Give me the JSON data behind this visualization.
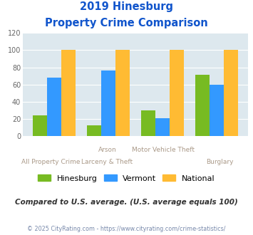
{
  "title_line1": "2019 Hinesburg",
  "title_line2": "Property Crime Comparison",
  "x_labels_top": [
    "",
    "Arson",
    "Motor Vehicle Theft",
    ""
  ],
  "x_labels_bottom": [
    "All Property Crime",
    "Larceny & Theft",
    "",
    "Burglary"
  ],
  "hinesburg": [
    24,
    13,
    30,
    71
  ],
  "vermont": [
    68,
    76,
    21,
    60
  ],
  "national": [
    100,
    100,
    100,
    100
  ],
  "colors": {
    "hinesburg": "#77bb22",
    "vermont": "#3399ff",
    "national": "#ffbb33"
  },
  "ylim": [
    0,
    120
  ],
  "yticks": [
    0,
    20,
    40,
    60,
    80,
    100,
    120
  ],
  "plot_bg": "#dde8ee",
  "footer_text": "Compared to U.S. average. (U.S. average equals 100)",
  "copyright_text": "© 2025 CityRating.com - https://www.cityrating.com/crime-statistics/",
  "title_color": "#1155cc",
  "xlabel_color": "#aa9988",
  "footer_color": "#333333",
  "copyright_color": "#7788aa",
  "grid_color": "#ffffff",
  "legend_labels": [
    "Hinesburg",
    "Vermont",
    "National"
  ]
}
